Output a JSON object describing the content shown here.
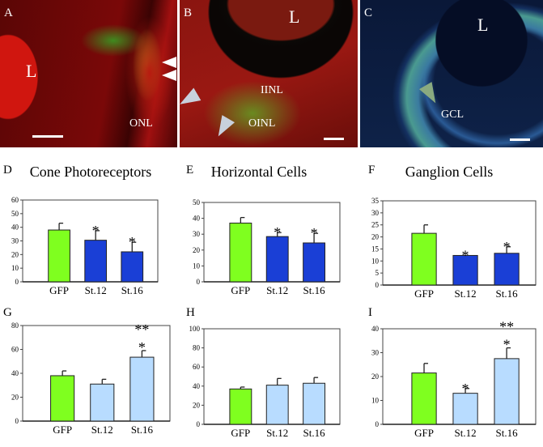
{
  "panels_images": [
    {
      "letter": "A",
      "labels": [
        "L",
        "ONL"
      ]
    },
    {
      "letter": "B",
      "labels": [
        "L",
        "IINL",
        "OINL"
      ]
    },
    {
      "letter": "C",
      "labels": [
        "L",
        "GCL"
      ]
    }
  ],
  "colors": {
    "gfp": "#7fff1f",
    "dark_blue": "#1a3fd6",
    "light_blue": "#b8dcff"
  },
  "chart_data": [
    {
      "type": "bar",
      "letter": "D",
      "title": "Cone Photoreceptors",
      "categories": [
        "GFP",
        "St.12",
        "St.16"
      ],
      "values": [
        38,
        30.5,
        22
      ],
      "errors": [
        5,
        7,
        7
      ],
      "stars": [
        "",
        "*",
        "*"
      ],
      "bar_colors": [
        "gfp",
        "dark_blue",
        "dark_blue"
      ],
      "ylim": [
        0,
        60
      ],
      "yticks": [
        "0",
        "10",
        "20",
        "30",
        "40",
        "50",
        "60"
      ]
    },
    {
      "type": "bar",
      "letter": "E",
      "title": "Horizontal Cells",
      "categories": [
        "GFP",
        "St.12",
        "St.16"
      ],
      "values": [
        37,
        28.5,
        24.5
      ],
      "errors": [
        3.5,
        2.5,
        6
      ],
      "stars": [
        "",
        "*",
        "*"
      ],
      "bar_colors": [
        "gfp",
        "dark_blue",
        "dark_blue"
      ],
      "ylim": [
        0,
        50
      ],
      "yticks": [
        "0",
        "10",
        "20",
        "30",
        "40",
        "50"
      ]
    },
    {
      "type": "bar",
      "letter": "F",
      "title": "Ganglion Cells",
      "categories": [
        "GFP",
        "St.12",
        "St.16"
      ],
      "values": [
        21.5,
        12.3,
        13.2
      ],
      "errors": [
        3.5,
        0,
        2.7
      ],
      "stars": [
        "",
        "*",
        "*"
      ],
      "bar_colors": [
        "gfp",
        "dark_blue",
        "dark_blue"
      ],
      "ylim": [
        0,
        35
      ],
      "yticks": [
        "0",
        "5",
        "10",
        "15",
        "20",
        "25",
        "30",
        "35"
      ]
    },
    {
      "type": "bar",
      "letter": "G",
      "title": "",
      "categories": [
        "GFP",
        "St.12",
        "St.16"
      ],
      "values": [
        38,
        31,
        53.5
      ],
      "errors": [
        4,
        4,
        5.5
      ],
      "stars": [
        "",
        "",
        "**\n*"
      ],
      "bar_colors": [
        "gfp",
        "light_blue",
        "light_blue"
      ],
      "ylim": [
        0,
        80
      ],
      "yticks": [
        "0",
        "20",
        "40",
        "60",
        "80"
      ]
    },
    {
      "type": "bar",
      "letter": "H",
      "title": "",
      "categories": [
        "GFP",
        "St.12",
        "St.16"
      ],
      "values": [
        37,
        41,
        43
      ],
      "errors": [
        2,
        7,
        6
      ],
      "stars": [
        "",
        "",
        ""
      ],
      "bar_colors": [
        "gfp",
        "light_blue",
        "light_blue"
      ],
      "ylim": [
        0,
        100
      ],
      "yticks": [
        "0",
        "20",
        "40",
        "60",
        "80",
        "100"
      ]
    },
    {
      "type": "bar",
      "letter": "I",
      "title": "",
      "categories": [
        "GFP",
        "St.12",
        "St.16"
      ],
      "values": [
        21.5,
        13,
        27.5
      ],
      "errors": [
        4,
        2,
        4.5
      ],
      "stars": [
        "",
        "*",
        "**\n*"
      ],
      "bar_colors": [
        "gfp",
        "light_blue",
        "light_blue"
      ],
      "ylim": [
        0,
        40
      ],
      "yticks": [
        "0",
        "10",
        "20",
        "30",
        "40"
      ]
    }
  ]
}
